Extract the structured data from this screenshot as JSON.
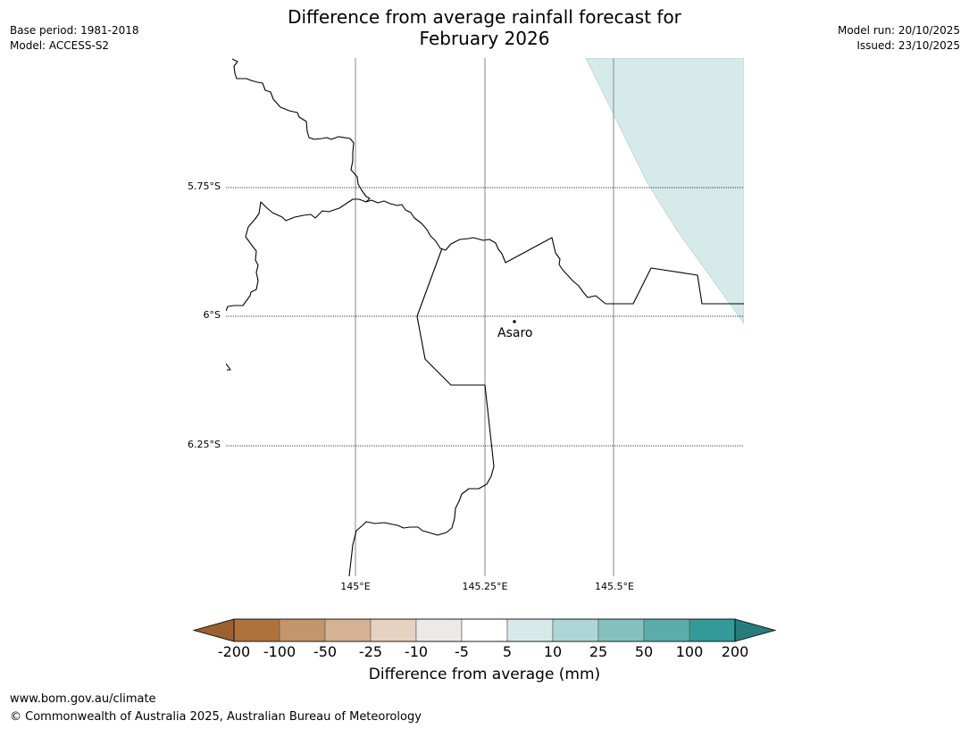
{
  "header": {
    "title_line1": "Difference from average rainfall forecast for",
    "title_line2": "February 2026",
    "base_period": "Base period: 1981-2018",
    "model": "Model: ACCESS-S2",
    "model_run": "Model run: 20/10/2025",
    "issued": "Issued: 23/10/2025"
  },
  "map": {
    "lat_labels": [
      "5.75°S",
      "6°S",
      "6.25°S"
    ],
    "lon_labels": [
      "145°E",
      "145.25°E",
      "145.5°E"
    ],
    "place": {
      "name": "Asaro"
    },
    "colors": {
      "coast": "#000000",
      "forecast_shade": "#d5eae9",
      "gridline_lon": "#999999",
      "gridline_lat": "#000000"
    }
  },
  "colorbar": {
    "ticks": [
      "-200",
      "-100",
      "-50",
      "-25",
      "-10",
      "-5",
      "5",
      "10",
      "25",
      "50",
      "100",
      "200"
    ],
    "colors": [
      "#9b6130",
      "#ae733c",
      "#c4946a",
      "#d4b293",
      "#e6d2c1",
      "#ebeae8",
      "#ffffff",
      "#d5eae9",
      "#afd6d6",
      "#84c1be",
      "#5aadab",
      "#339a99",
      "#267d7b"
    ],
    "label": "Difference from average (mm)"
  },
  "footer": {
    "url": "www.bom.gov.au/climate",
    "copyright": "© Commonwealth of Australia 2025, Australian Bureau of Meteorology"
  }
}
